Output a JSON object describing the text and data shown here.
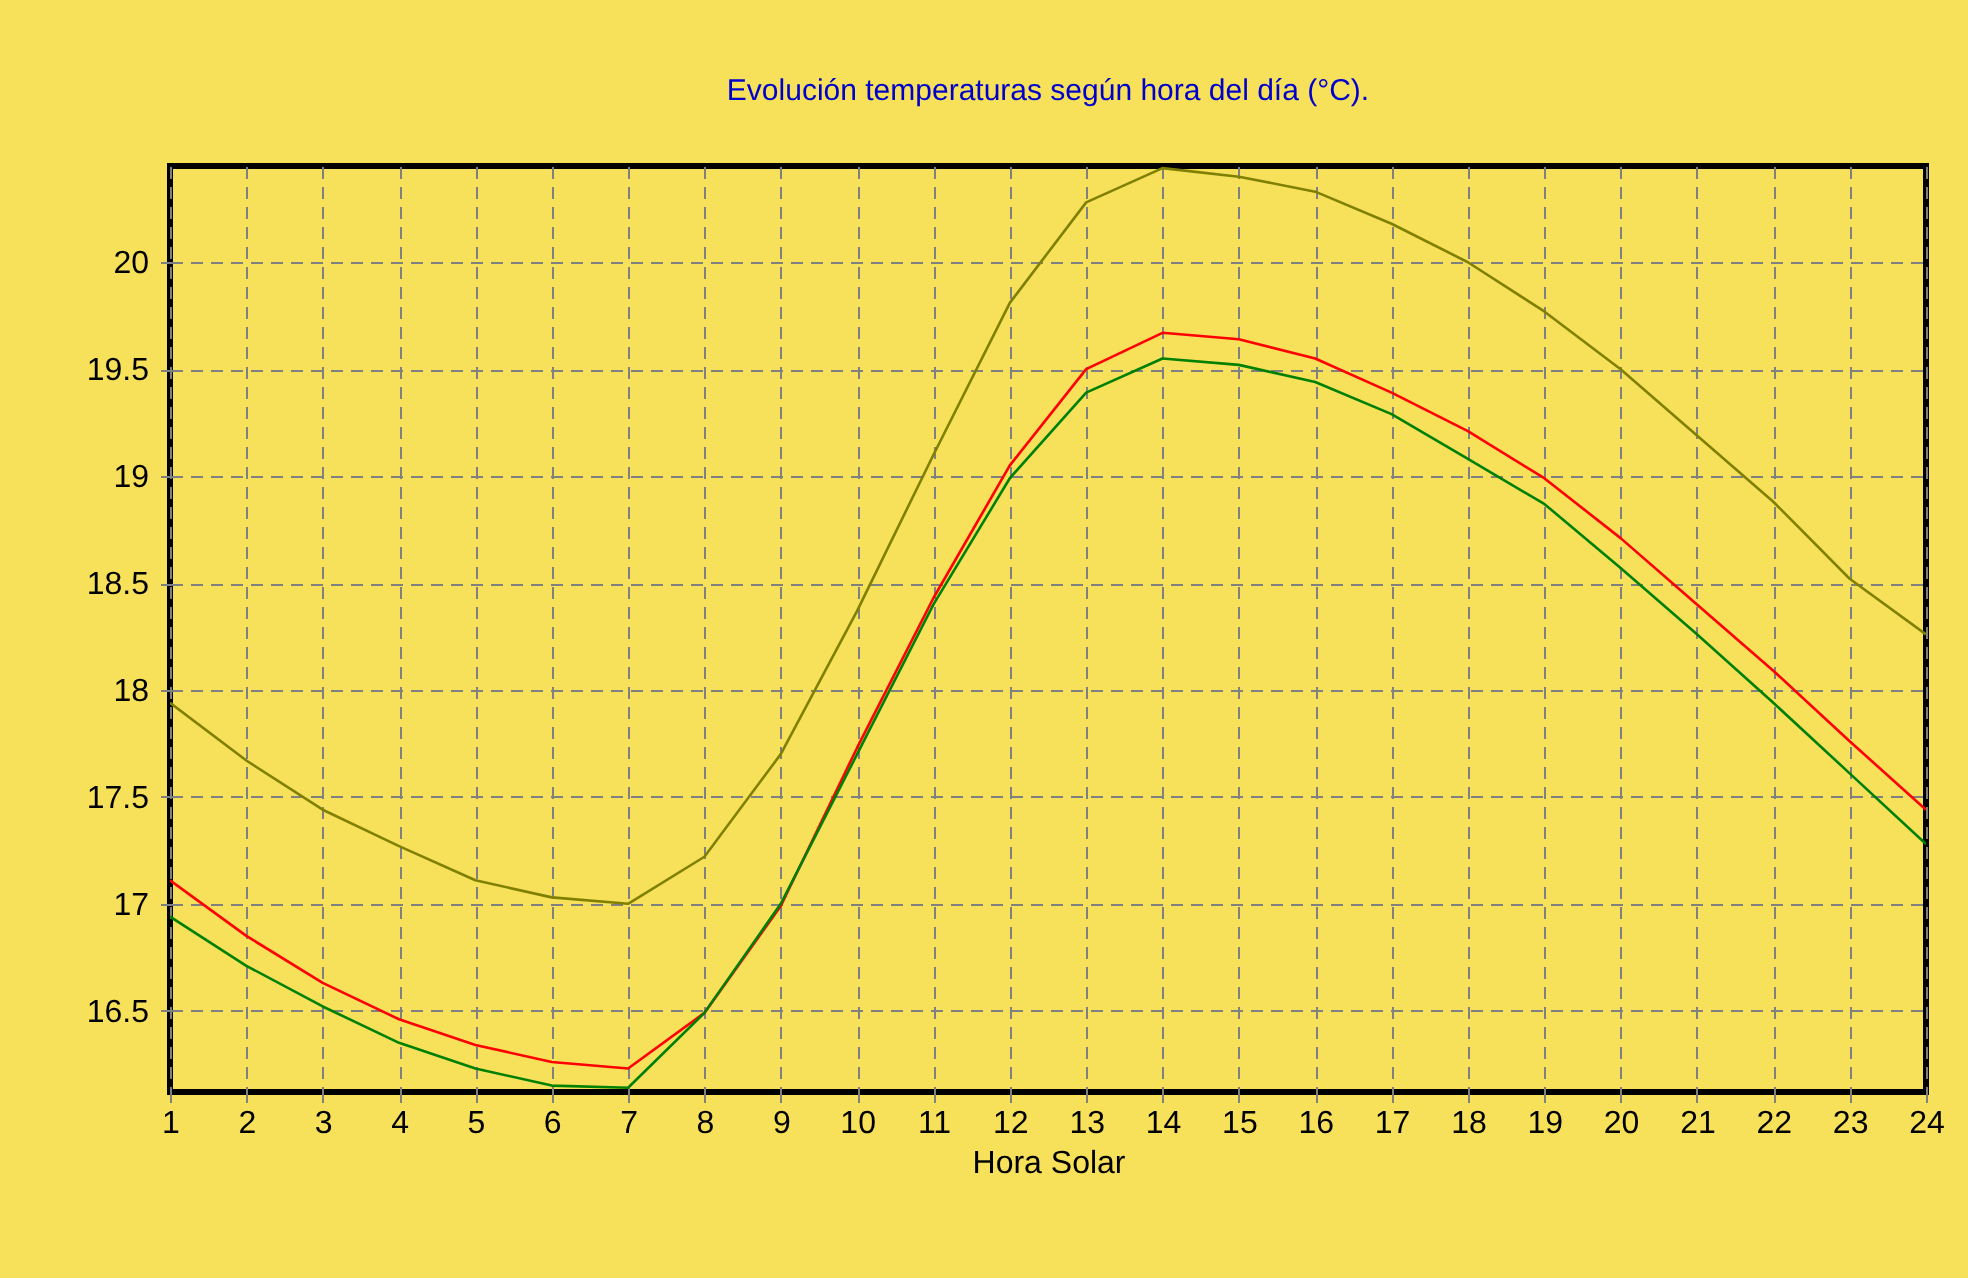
{
  "chart_data": {
    "type": "line",
    "title": "Evolución temperaturas según hora del día  (°C).",
    "xlabel": "Hora Solar",
    "x": [
      1,
      2,
      3,
      4,
      5,
      6,
      7,
      8,
      9,
      10,
      11,
      12,
      13,
      14,
      15,
      16,
      17,
      18,
      19,
      20,
      21,
      22,
      23,
      24
    ],
    "series": [
      {
        "color": "#808000",
        "values": [
          17.94,
          17.67,
          17.44,
          17.27,
          17.11,
          17.03,
          17.0,
          17.22,
          17.7,
          18.37,
          19.1,
          19.81,
          20.28,
          20.44,
          20.4,
          20.33,
          20.18,
          20.0,
          19.77,
          19.5,
          19.19,
          18.88,
          18.52,
          18.26
        ]
      },
      {
        "color": "#ff0000",
        "values": [
          17.11,
          16.85,
          16.63,
          16.46,
          16.34,
          16.26,
          16.23,
          16.49,
          16.99,
          17.73,
          18.43,
          19.05,
          19.5,
          19.67,
          19.64,
          19.55,
          19.39,
          19.21,
          18.99,
          18.71,
          18.4,
          18.09,
          17.76,
          17.44
        ]
      },
      {
        "color": "#008000",
        "values": [
          16.94,
          16.71,
          16.52,
          16.35,
          16.23,
          16.15,
          16.14,
          16.49,
          17.0,
          17.7,
          18.4,
          18.99,
          19.39,
          19.55,
          19.52,
          19.44,
          19.29,
          19.08,
          18.87,
          18.57,
          18.26,
          17.94,
          17.61,
          17.28
        ]
      }
    ],
    "xlim": [
      1,
      24
    ],
    "xticks": [
      1,
      2,
      3,
      4,
      5,
      6,
      7,
      8,
      9,
      10,
      11,
      12,
      13,
      14,
      15,
      16,
      17,
      18,
      19,
      20,
      21,
      22,
      23,
      24
    ],
    "ylim": [
      16.12,
      20.45
    ],
    "yticks": [
      16.5,
      17,
      17.5,
      18,
      18.5,
      19,
      19.5,
      20
    ],
    "grid": true,
    "marker": "none",
    "line_style": "solid",
    "legend": false
  }
}
